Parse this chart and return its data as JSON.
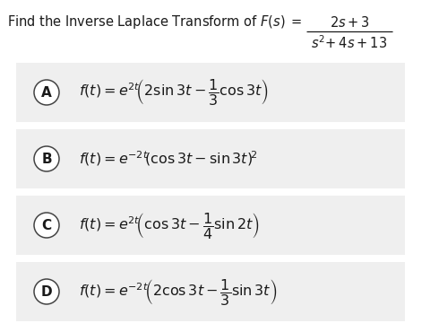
{
  "background_color": "#ffffff",
  "option_bg_color": "#efefef",
  "circle_edge_color": "#444444",
  "text_color": "#1a1a1a",
  "question_prefix": "Find the Inverse Laplace Transform of ",
  "Fs_italic": "$F(s)$",
  "equals": " = ",
  "numerator": "$2s+3$",
  "denominator": "$s^2\\!+4s+13$",
  "options": [
    {
      "label": "A",
      "latex": "$f(t) = e^{2t}\\!\\left(2\\sin 3t - \\dfrac{1}{3}\\cos 3t\\right)$"
    },
    {
      "label": "B",
      "latex": "$f(t) = e^{-2t}\\!\\left(\\cos 3t - \\sin 3t\\right)^{\\!2}$"
    },
    {
      "label": "C",
      "latex": "$f(t) = e^{2t}\\!\\left(\\cos 3t - \\dfrac{1}{4}\\sin 2t\\right)$"
    },
    {
      "label": "D",
      "latex": "$f(t) = e^{-2t}\\!\\left(2\\cos 3t - \\dfrac{1}{3}\\sin 3t\\right)$"
    }
  ],
  "question_fontsize": 10.5,
  "formula_fontsize": 11.5,
  "label_fontsize": 11,
  "fig_width": 4.71,
  "fig_height": 3.7,
  "dpi": 100
}
